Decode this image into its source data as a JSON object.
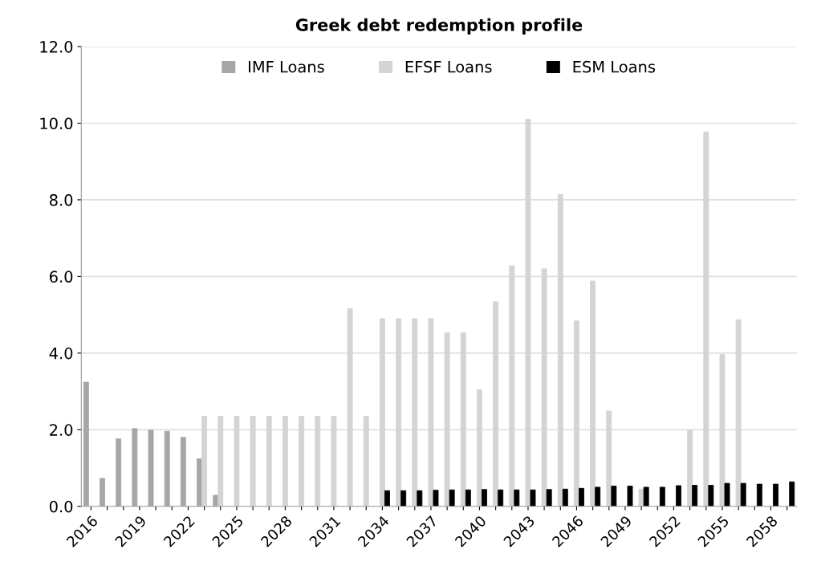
{
  "chart_data": {
    "type": "bar",
    "title": "Greek debt redemption profile",
    "categories": [
      "2016",
      null,
      null,
      "2019",
      null,
      null,
      "2022",
      null,
      null,
      "2025",
      null,
      null,
      "2028",
      null,
      null,
      "2031",
      null,
      null,
      "2034",
      null,
      null,
      "2037",
      null,
      null,
      "2040",
      null,
      null,
      "2043",
      null,
      null,
      "2046",
      null,
      null,
      "2049",
      null,
      null,
      "2052",
      null,
      null,
      "2055",
      null,
      null,
      "2058",
      null
    ],
    "series": [
      {
        "name": "IMF Loans",
        "color": "#a6a6a6",
        "values": [
          3.24,
          0.73,
          1.76,
          2.03,
          1.99,
          1.96,
          1.8,
          1.24,
          0.29,
          null,
          null,
          null,
          null,
          null,
          null,
          null,
          null,
          null,
          null,
          null,
          null,
          null,
          null,
          null,
          null,
          null,
          null,
          null,
          null,
          null,
          null,
          null,
          null,
          null,
          null,
          null,
          null,
          null,
          null,
          null,
          null,
          null,
          null,
          null
        ]
      },
      {
        "name": "EFSF Loans",
        "color": "#d4d4d4",
        "values": [
          null,
          null,
          null,
          null,
          null,
          null,
          null,
          2.35,
          2.35,
          2.35,
          2.35,
          2.35,
          2.35,
          2.35,
          2.35,
          2.35,
          5.16,
          2.35,
          4.9,
          4.9,
          4.9,
          4.9,
          4.53,
          4.53,
          3.04,
          5.34,
          6.28,
          10.1,
          6.2,
          8.14,
          4.84,
          5.88,
          2.49,
          null,
          0.45,
          null,
          null,
          1.99,
          9.77,
          3.96,
          4.87,
          null,
          null,
          null
        ]
      },
      {
        "name": "ESM Loans",
        "color": "#000000",
        "values": [
          null,
          null,
          null,
          null,
          null,
          null,
          null,
          null,
          null,
          null,
          null,
          null,
          null,
          null,
          null,
          null,
          null,
          null,
          0.41,
          0.41,
          0.41,
          0.42,
          0.43,
          0.43,
          0.44,
          0.43,
          0.43,
          0.43,
          0.44,
          0.45,
          0.47,
          0.5,
          0.53,
          0.53,
          0.5,
          0.5,
          0.54,
          0.55,
          0.55,
          0.6,
          0.6,
          0.58,
          0.58,
          0.64
        ]
      }
    ],
    "ylim": [
      0,
      12
    ],
    "yticks": [
      {
        "value": 0,
        "label": "0.0"
      },
      {
        "value": 2,
        "label": "2.0"
      },
      {
        "value": 4,
        "label": "4.0"
      },
      {
        "value": 6,
        "label": "6.0"
      },
      {
        "value": 8,
        "label": "8.0"
      },
      {
        "value": 10,
        "label": "10.0"
      },
      {
        "value": 12,
        "label": "12.0"
      }
    ],
    "grid": "y",
    "legend": "top"
  }
}
